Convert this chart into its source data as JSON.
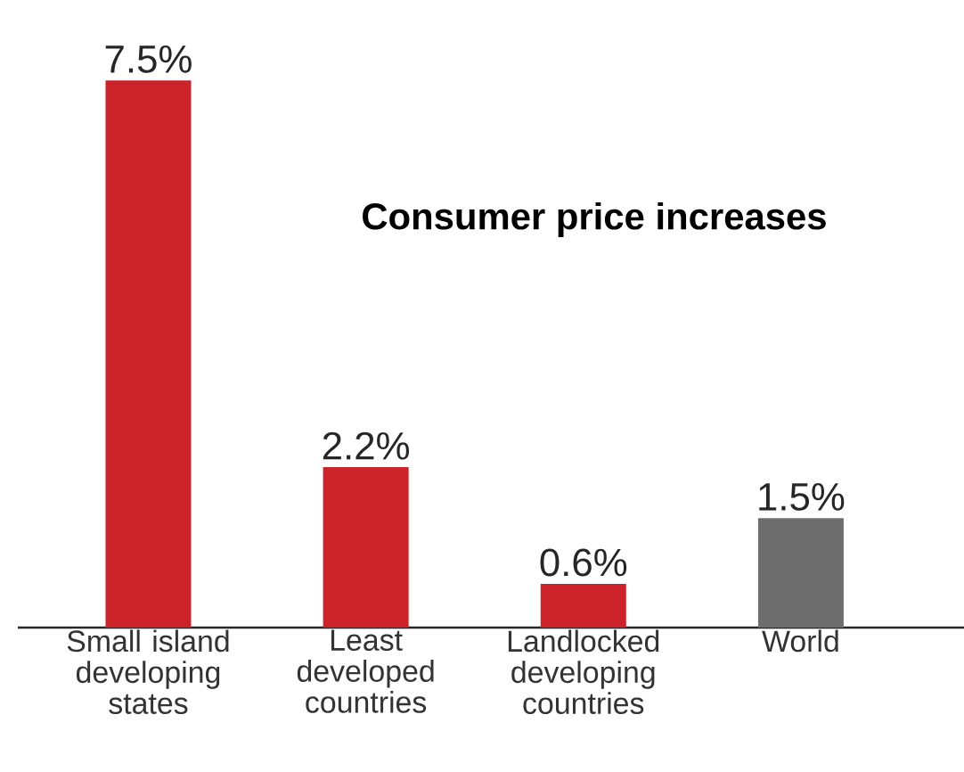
{
  "chart_data": {
    "type": "bar",
    "title": "Consumer price increases",
    "categories": [
      "Small island developing states",
      "Least developed countries",
      "Landlocked developing countries",
      "World"
    ],
    "values": [
      7.5,
      2.2,
      0.6,
      1.5
    ],
    "colors": [
      "#cc2229",
      "#cc2229",
      "#cc2229",
      "#6e6e6e"
    ],
    "value_labels": [
      "7.5%",
      "2.2%",
      "0.6%",
      "1.5%"
    ]
  }
}
